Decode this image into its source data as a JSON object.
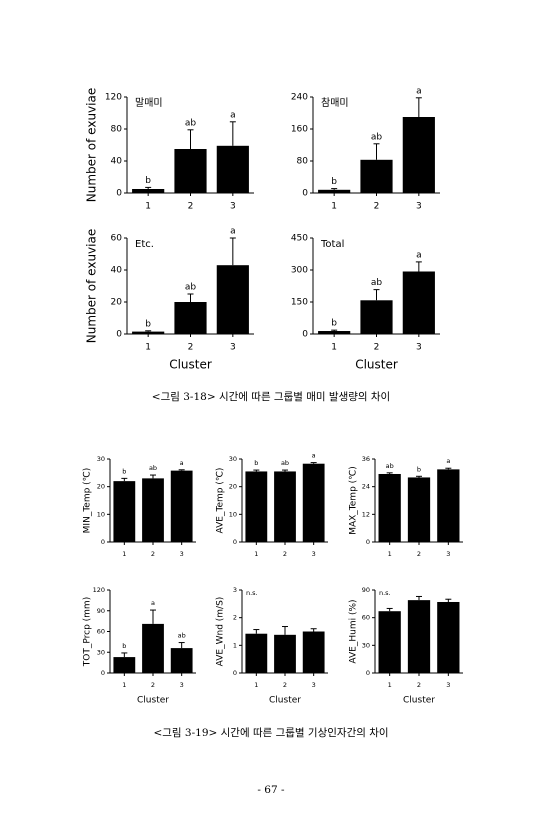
{
  "chart_data": [
    {
      "type": "bar",
      "title": "말매미",
      "ylabel": "Number of exuviae",
      "categories": [
        "1",
        "2",
        "3"
      ],
      "values": [
        5,
        55,
        59
      ],
      "errors": [
        2,
        24,
        30
      ],
      "letters": [
        "b",
        "ab",
        "a"
      ],
      "ylim": [
        0,
        120
      ],
      "yticks": [
        0,
        40,
        80,
        120
      ],
      "color": "#000000"
    },
    {
      "type": "bar",
      "title": "참매미",
      "categories": [
        "1",
        "2",
        "3"
      ],
      "values": [
        8,
        83,
        190
      ],
      "errors": [
        3,
        40,
        48
      ],
      "letters": [
        "b",
        "ab",
        "a"
      ],
      "ylim": [
        0,
        240
      ],
      "yticks": [
        0,
        80,
        160,
        240
      ],
      "color": "#000000"
    },
    {
      "type": "bar",
      "title": "Etc.",
      "ylabel": "Number of exuviae",
      "xlabel": "Cluster",
      "categories": [
        "1",
        "2",
        "3"
      ],
      "values": [
        1.5,
        20,
        43
      ],
      "errors": [
        0.5,
        5,
        17
      ],
      "letters": [
        "b",
        "ab",
        "a"
      ],
      "ylim": [
        0,
        60
      ],
      "yticks": [
        0,
        20,
        40,
        60
      ],
      "color": "#000000"
    },
    {
      "type": "bar",
      "title": "Total",
      "xlabel": "Cluster",
      "categories": [
        "1",
        "2",
        "3"
      ],
      "values": [
        14,
        158,
        293
      ],
      "errors": [
        4,
        50,
        45
      ],
      "letters": [
        "b",
        "ab",
        "a"
      ],
      "ylim": [
        0,
        450
      ],
      "yticks": [
        0,
        150,
        300,
        450
      ],
      "color": "#000000"
    },
    {
      "type": "bar",
      "ylabel": "MIN_Temp (℃)",
      "categories": [
        "1",
        "2",
        "3"
      ],
      "values": [
        22,
        23,
        25.8
      ],
      "errors": [
        1,
        1.2,
        0.3
      ],
      "letters": [
        "b",
        "ab",
        "a"
      ],
      "ylim": [
        0,
        30
      ],
      "yticks": [
        0,
        10,
        20,
        30
      ],
      "color": "#000000"
    },
    {
      "type": "bar",
      "ylabel": "AVE_Temp (℃)",
      "categories": [
        "1",
        "2",
        "3"
      ],
      "values": [
        25.5,
        25.5,
        28.3
      ],
      "errors": [
        0.5,
        0.5,
        0.4
      ],
      "letters": [
        "b",
        "ab",
        "a"
      ],
      "ylim": [
        0,
        30
      ],
      "yticks": [
        0,
        10,
        20,
        30
      ],
      "color": "#000000"
    },
    {
      "type": "bar",
      "ylabel": "MAX_Temp (℃)",
      "categories": [
        "1",
        "2",
        "3"
      ],
      "values": [
        29.5,
        28,
        31.5
      ],
      "errors": [
        0.5,
        0.5,
        0.5
      ],
      "letters": [
        "ab",
        "b",
        "a"
      ],
      "ylim": [
        0,
        36
      ],
      "yticks": [
        0,
        12,
        24,
        36
      ],
      "color": "#000000"
    },
    {
      "type": "bar",
      "ylabel": "TOT_Prcp (mm)",
      "xlabel": "Cluster",
      "categories": [
        "1",
        "2",
        "3"
      ],
      "values": [
        23,
        71,
        36
      ],
      "errors": [
        6,
        20,
        8
      ],
      "letters": [
        "b",
        "a",
        "ab"
      ],
      "ylim": [
        0,
        120
      ],
      "yticks": [
        0,
        30,
        60,
        90,
        120
      ],
      "color": "#000000"
    },
    {
      "type": "bar",
      "ylabel": "AVE_Wnd (m/S)",
      "xlabel": "Cluster",
      "annotation": "n.s.",
      "categories": [
        "1",
        "2",
        "3"
      ],
      "values": [
        1.42,
        1.38,
        1.5
      ],
      "errors": [
        0.15,
        0.3,
        0.1
      ],
      "ylim": [
        0,
        3
      ],
      "yticks": [
        0,
        1,
        2,
        3
      ],
      "color": "#000000"
    },
    {
      "type": "bar",
      "ylabel": "AVE_Humi (%)",
      "xlabel": "Cluster",
      "annotation": "n.s.",
      "categories": [
        "1",
        "2",
        "3"
      ],
      "values": [
        67,
        79,
        77
      ],
      "errors": [
        3,
        4,
        3
      ],
      "ylim": [
        0,
        90
      ],
      "yticks": [
        0,
        30,
        60,
        90
      ],
      "color": "#000000"
    }
  ],
  "captions": [
    "<그림 3-18> 시간에 따른 그룹별 매미 발생량의 차이",
    "<그림 3-19> 시간에 따른 그룹별 기상인자간의 차이"
  ],
  "page_number": "- 67 -"
}
